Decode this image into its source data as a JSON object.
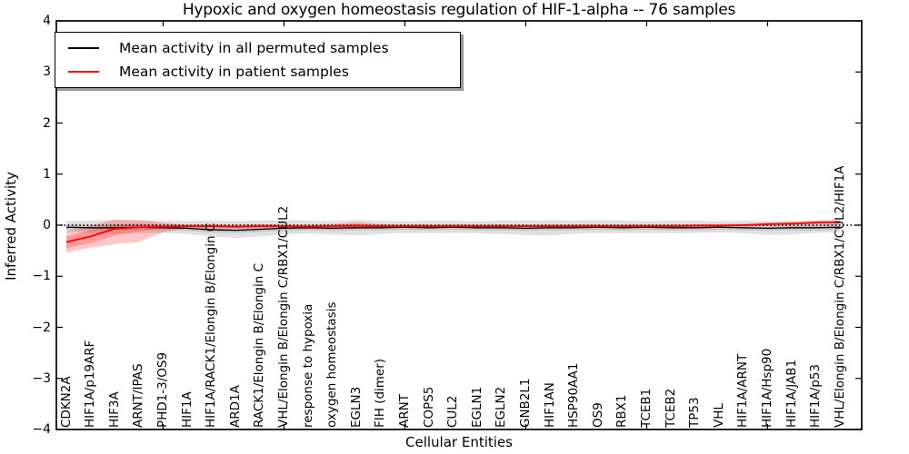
{
  "chart_data": {
    "type": "line",
    "title": "Hypoxic and oxygen homeostasis regulation of HIF-1-alpha -- 76 samples",
    "xlabel": "Cellular Entities",
    "ylabel": "Inferred Activity",
    "ylim": [
      -4,
      4
    ],
    "y_ticks": [
      4,
      3,
      2,
      1,
      0,
      -1,
      -2,
      -3,
      -4
    ],
    "y_tick_labels": [
      "4",
      "3",
      "2",
      "1",
      "0",
      "−1",
      "−2",
      "−3",
      "−4"
    ],
    "grid": false,
    "categories": [
      "CDKN2A",
      "HIF1A/p19ARF",
      "HIF3A",
      "ARNT/IPAS",
      "PHD1-3/OS9",
      "HIF1A",
      "HIF1A/RACK1/Elongin B/Elongin C",
      "ARD1A",
      "RACK1/Elongin B/Elongin C",
      "VHL/Elongin B/Elongin C/RBX1/CUL2",
      "response to hypoxia",
      "oxygen homeostasis",
      "EGLN3",
      "FIH (dimer)",
      "ARNT",
      "COPS5",
      "CUL2",
      "EGLN1",
      "EGLN2",
      "GNB2L1",
      "HIF1AN",
      "HSP90AA1",
      "OS9",
      "RBX1",
      "TCEB1",
      "TCEB2",
      "TP53",
      "VHL",
      "HIF1A/ARNT",
      "HIF1A/Hsp90",
      "HIF1A/JAB1",
      "HIF1A/p53",
      "VHL/Elongin B/Elongin C/RBX1/CUL2/HIF1A"
    ],
    "series": [
      {
        "name": "Mean activity in all permuted samples",
        "color": "#000000",
        "values": [
          -0.04,
          -0.05,
          -0.05,
          -0.04,
          -0.05,
          -0.06,
          -0.09,
          -0.1,
          -0.08,
          -0.06,
          -0.05,
          -0.06,
          -0.05,
          -0.05,
          -0.04,
          -0.05,
          -0.04,
          -0.05,
          -0.05,
          -0.06,
          -0.05,
          -0.05,
          -0.04,
          -0.05,
          -0.04,
          -0.05,
          -0.05,
          -0.04,
          -0.05,
          -0.06,
          -0.05,
          -0.05,
          -0.04
        ]
      },
      {
        "name": "Mean activity in patient samples",
        "color": "#ff0000",
        "values": [
          -0.33,
          -0.22,
          -0.07,
          -0.04,
          -0.03,
          -0.02,
          -0.02,
          -0.03,
          -0.02,
          -0.02,
          -0.03,
          -0.02,
          -0.01,
          -0.02,
          -0.02,
          -0.02,
          -0.02,
          -0.02,
          -0.02,
          -0.02,
          -0.02,
          -0.02,
          -0.02,
          -0.02,
          -0.02,
          -0.02,
          -0.01,
          -0.01,
          0.0,
          0.02,
          0.03,
          0.05,
          0.06
        ]
      }
    ],
    "bands": [
      {
        "series": "permuted",
        "level": "outer",
        "color": "#000000",
        "alpha": 0.12,
        "high": [
          0.08,
          0.09,
          0.1,
          0.09,
          0.09,
          0.08,
          0.09,
          0.08,
          0.09,
          0.1,
          0.09,
          0.08,
          0.1,
          0.09,
          0.08,
          0.09,
          0.09,
          0.08,
          0.09,
          0.09,
          0.1,
          0.09,
          0.1,
          0.09,
          0.08,
          0.09,
          0.09,
          0.08,
          0.09,
          0.08,
          0.09,
          0.09,
          0.08
        ],
        "low": [
          -0.13,
          -0.15,
          -0.17,
          -0.16,
          -0.15,
          -0.17,
          -0.22,
          -0.25,
          -0.22,
          -0.18,
          -0.16,
          -0.18,
          -0.2,
          -0.17,
          -0.15,
          -0.16,
          -0.15,
          -0.16,
          -0.17,
          -0.19,
          -0.2,
          -0.17,
          -0.15,
          -0.16,
          -0.15,
          -0.16,
          -0.15,
          -0.14,
          -0.16,
          -0.19,
          -0.18,
          -0.15,
          -0.13
        ]
      },
      {
        "series": "permuted",
        "level": "inner",
        "color": "#000000",
        "alpha": 0.12,
        "high": [
          0.01,
          0.0,
          0.0,
          0.01,
          0.0,
          -0.01,
          -0.04,
          -0.05,
          -0.03,
          -0.01,
          0.0,
          -0.01,
          0.0,
          0.0,
          0.01,
          0.0,
          0.01,
          0.0,
          0.0,
          -0.01,
          0.0,
          0.0,
          0.01,
          0.0,
          0.01,
          0.0,
          0.0,
          0.01,
          0.0,
          -0.01,
          0.0,
          0.0,
          0.01
        ],
        "low": [
          -0.09,
          -0.1,
          -0.1,
          -0.09,
          -0.1,
          -0.11,
          -0.14,
          -0.15,
          -0.13,
          -0.11,
          -0.1,
          -0.11,
          -0.1,
          -0.1,
          -0.09,
          -0.1,
          -0.09,
          -0.1,
          -0.1,
          -0.11,
          -0.1,
          -0.1,
          -0.09,
          -0.1,
          -0.09,
          -0.1,
          -0.1,
          -0.09,
          -0.1,
          -0.11,
          -0.1,
          -0.1,
          -0.09
        ]
      },
      {
        "series": "patient",
        "level": "outer",
        "color": "#ff0000",
        "alpha": 0.22,
        "high": [
          -0.12,
          -0.01,
          0.11,
          0.1,
          0.05,
          0.01,
          0.02,
          0.01,
          0.02,
          0.01,
          0.01,
          0.02,
          0.06,
          0.02,
          0.01,
          0.01,
          0.01,
          0.01,
          0.01,
          0.01,
          0.01,
          0.01,
          0.01,
          0.01,
          0.01,
          0.01,
          0.02,
          0.02,
          0.03,
          0.05,
          0.06,
          0.08,
          0.12
        ],
        "low": [
          -0.53,
          -0.44,
          -0.37,
          -0.33,
          -0.14,
          -0.05,
          -0.05,
          -0.06,
          -0.05,
          -0.05,
          -0.05,
          -0.05,
          -0.07,
          -0.05,
          -0.04,
          -0.04,
          -0.04,
          -0.04,
          -0.04,
          -0.04,
          -0.04,
          -0.04,
          -0.04,
          -0.04,
          -0.04,
          -0.04,
          -0.04,
          -0.03,
          -0.02,
          -0.01,
          0.0,
          0.01,
          0.0
        ]
      },
      {
        "series": "patient",
        "level": "inner",
        "color": "#ff0000",
        "alpha": 0.22,
        "high": [
          -0.22,
          -0.1,
          0.02,
          0.03,
          0.01,
          0.0,
          0.0,
          -0.01,
          0.0,
          0.0,
          -0.01,
          0.0,
          0.02,
          0.0,
          0.0,
          0.0,
          0.0,
          0.0,
          0.0,
          0.0,
          0.0,
          0.0,
          0.0,
          0.0,
          0.0,
          0.0,
          0.0,
          0.01,
          0.01,
          0.03,
          0.04,
          0.06,
          0.08
        ],
        "low": [
          -0.45,
          -0.35,
          -0.2,
          -0.12,
          -0.06,
          -0.04,
          -0.04,
          -0.04,
          -0.04,
          -0.04,
          -0.04,
          -0.04,
          -0.04,
          -0.04,
          -0.03,
          -0.03,
          -0.03,
          -0.03,
          -0.03,
          -0.03,
          -0.03,
          -0.03,
          -0.03,
          -0.03,
          -0.03,
          -0.03,
          -0.03,
          -0.02,
          -0.02,
          0.0,
          0.02,
          0.03,
          0.05
        ]
      }
    ],
    "reference_line": {
      "y": 0,
      "style": "dotted",
      "color": "#000000"
    },
    "legend": {
      "position": "upper left",
      "items": [
        {
          "label": "Mean activity in all permuted samples",
          "color": "#000000"
        },
        {
          "label": "Mean activity in patient samples",
          "color": "#ff0000"
        }
      ]
    }
  }
}
